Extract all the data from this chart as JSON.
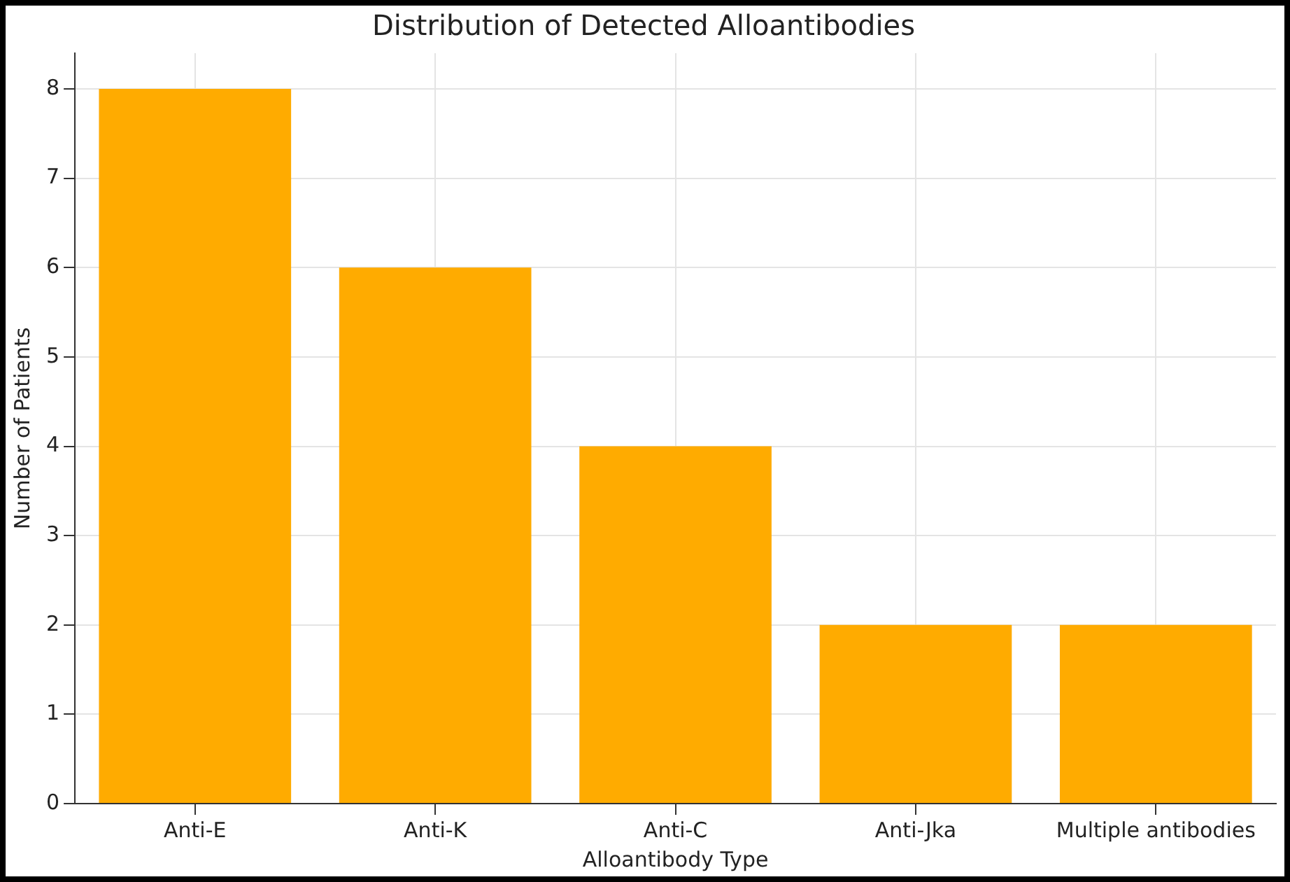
{
  "chart_data": {
    "type": "bar",
    "title": "Distribution of Detected Alloantibodies",
    "xlabel": "Alloantibody Type",
    "ylabel": "Number of Patients",
    "categories": [
      "Anti-E",
      "Anti-K",
      "Anti-C",
      "Anti-Jka",
      "Multiple antibodies"
    ],
    "values": [
      8,
      6,
      4,
      2,
      2
    ],
    "color": "#ffab00",
    "ylim": [
      0,
      8.4
    ],
    "yticks": [
      0,
      1,
      2,
      3,
      4,
      5,
      6,
      7,
      8
    ],
    "grid": true
  }
}
